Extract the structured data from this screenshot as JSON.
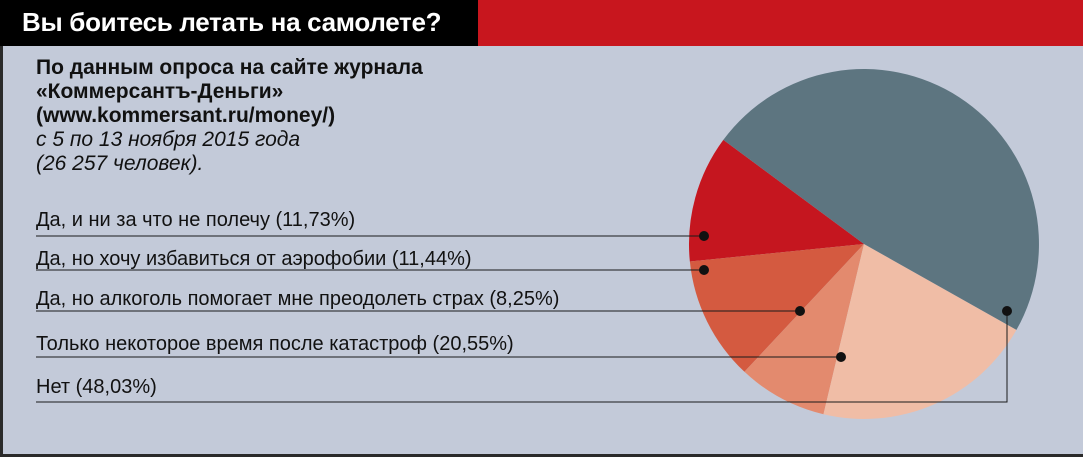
{
  "header": {
    "title": "Вы боитесь летать на самолете?"
  },
  "source": {
    "line1": "По данным опроса на сайте журнала",
    "line2": "«Коммерсантъ-Деньги»",
    "line3": "(www.kommersant.ru/money/)",
    "line4": "с 5 по 13 ноября 2015 года",
    "line5": "(26 257 человек)."
  },
  "colors": {
    "background": "#c3cad9",
    "title_bg": "#000000",
    "title_bar": "#c8161e"
  },
  "chart_data": {
    "type": "pie",
    "title": "Вы боитесь летать на самолете?",
    "slices": [
      {
        "label": "Да, и ни за что не полечу (11,73%)",
        "value": 11.73,
        "color": "#c5161f"
      },
      {
        "label": "Да, но хочу избавиться от аэрофобии (11,44%)",
        "value": 11.44,
        "color": "#d45a40"
      },
      {
        "label": "Да, но алкоголь помогает мне преодолеть страх (8,25%)",
        "value": 8.25,
        "color": "#e38a6e"
      },
      {
        "label": "Только некоторое время после катастроф (20,55%)",
        "value": 20.55,
        "color": "#f0bda6"
      },
      {
        "label": "Нет (48,03%)",
        "value": 48.03,
        "color": "#5d7580"
      }
    ]
  }
}
